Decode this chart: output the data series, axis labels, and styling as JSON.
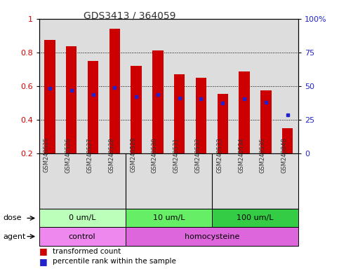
{
  "title": "GDS3413 / 364059",
  "samples": [
    "GSM240525",
    "GSM240526",
    "GSM240527",
    "GSM240528",
    "GSM240529",
    "GSM240530",
    "GSM240531",
    "GSM240532",
    "GSM240533",
    "GSM240534",
    "GSM240535",
    "GSM240848"
  ],
  "red_values": [
    0.875,
    0.835,
    0.75,
    0.94,
    0.72,
    0.81,
    0.67,
    0.65,
    0.555,
    0.685,
    0.575,
    0.35
  ],
  "blue_values": [
    0.585,
    0.575,
    0.55,
    0.59,
    0.535,
    0.55,
    0.53,
    0.525,
    0.5,
    0.525,
    0.505,
    0.43
  ],
  "red_base": 0.2,
  "ylim_left": [
    0.2,
    1.0
  ],
  "ylim_right": [
    0,
    100
  ],
  "yticks_left": [
    0.2,
    0.4,
    0.6,
    0.8,
    1.0
  ],
  "ytick_labels_left": [
    "0.2",
    "0.4",
    "0.6",
    "0.8",
    "1"
  ],
  "yticks_right": [
    0,
    25,
    50,
    75,
    100
  ],
  "ytick_labels_right": [
    "0",
    "25",
    "50",
    "75",
    "100%"
  ],
  "red_color": "#cc0000",
  "blue_color": "#2222cc",
  "bar_width": 0.5,
  "dose_groups": [
    {
      "label": "0 um/L",
      "color": "#bbffbb",
      "start": 0,
      "end": 4
    },
    {
      "label": "10 um/L",
      "color": "#66ee66",
      "start": 4,
      "end": 8
    },
    {
      "label": "100 um/L",
      "color": "#33cc44",
      "start": 8,
      "end": 12
    }
  ],
  "agent_groups": [
    {
      "label": "control",
      "color": "#ee88ee",
      "start": 0,
      "end": 4
    },
    {
      "label": "homocysteine",
      "color": "#dd66dd",
      "start": 4,
      "end": 12
    }
  ],
  "dose_label": "dose",
  "agent_label": "agent",
  "legend_red": "transformed count",
  "legend_blue": "percentile rank within the sample",
  "bg_color": "#ffffff",
  "bar_area_bg": "#dddddd",
  "tick_label_color_left": "#cc0000",
  "tick_label_color_right": "#2222cc",
  "grid_color": "#000000"
}
